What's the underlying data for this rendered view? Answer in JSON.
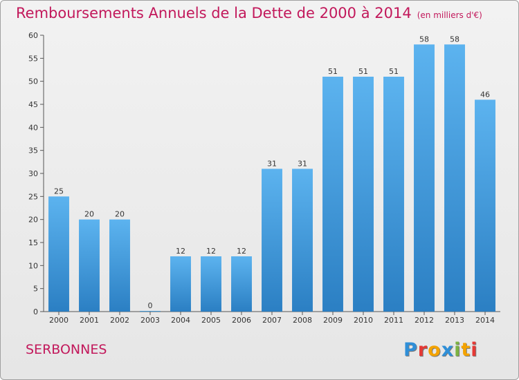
{
  "chart_data": {
    "type": "bar",
    "title": "Remboursements Annuels de la Dette de 2000 à 2014",
    "unit": "(en milliers d'€)",
    "categories": [
      "2000",
      "2001",
      "2002",
      "2003",
      "2004",
      "2005",
      "2006",
      "2007",
      "2008",
      "2009",
      "2010",
      "2011",
      "2012",
      "2013",
      "2014"
    ],
    "values": [
      25,
      20,
      20,
      0,
      12,
      12,
      12,
      31,
      31,
      51,
      51,
      51,
      58,
      58,
      46
    ],
    "xlabel": "",
    "ylabel": "",
    "ylim": [
      0,
      60
    ],
    "yticks": [
      0,
      5,
      10,
      15,
      20,
      25,
      30,
      35,
      40,
      45,
      50,
      55,
      60
    ],
    "grid": false,
    "bar_color": "#4aa3e2"
  },
  "footer": {
    "commune": "SERBONNES",
    "logo_letters": [
      {
        "char": "P",
        "color": "#2f8fd8"
      },
      {
        "char": "r",
        "color": "#e53935"
      },
      {
        "char": "o",
        "color": "#f4a300"
      },
      {
        "char": "x",
        "color": "#2f8fd8"
      },
      {
        "char": "i",
        "color": "#7cb342"
      },
      {
        "char": "t",
        "color": "#f4a300"
      },
      {
        "char": "i",
        "color": "#e53935"
      }
    ]
  }
}
